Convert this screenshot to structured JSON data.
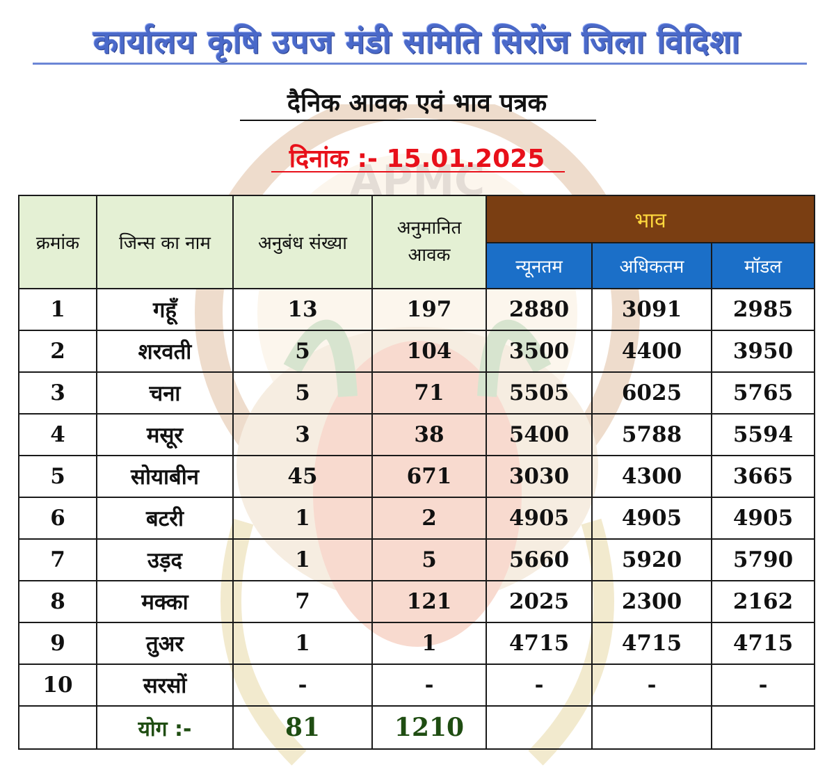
{
  "header": {
    "office_title": "कार्यालय कृषि उपज मंडी समिति सिरोंज जिला विदिशा",
    "subtitle": "दैनिक आवक एवं भाव पत्रक",
    "date_label": "दिनांक :- 15.01.2025"
  },
  "table": {
    "columns": {
      "serial": "क्रमांक",
      "commodity": "जिन्स का नाम",
      "contracts": "अनुबंध संख्या",
      "arrival": "अनुमानित आवक",
      "price_group": "भाव",
      "min": "न्यूनतम",
      "max": "अधिकतम",
      "modal": "मॉडल"
    },
    "rows": [
      {
        "sn": "1",
        "name": "गहूँ",
        "contracts": "13",
        "arrival": "197",
        "min": "2880",
        "max": "3091",
        "modal": "2985"
      },
      {
        "sn": "2",
        "name": "शरवती",
        "contracts": "5",
        "arrival": "104",
        "min": "3500",
        "max": "4400",
        "modal": "3950"
      },
      {
        "sn": "3",
        "name": "चना",
        "contracts": "5",
        "arrival": "71",
        "min": "5505",
        "max": "6025",
        "modal": "5765"
      },
      {
        "sn": "4",
        "name": "मसूर",
        "contracts": "3",
        "arrival": "38",
        "min": "5400",
        "max": "5788",
        "modal": "5594"
      },
      {
        "sn": "5",
        "name": "सोयाबीन",
        "contracts": "45",
        "arrival": "671",
        "min": "3030",
        "max": "4300",
        "modal": "3665"
      },
      {
        "sn": "6",
        "name": "बटरी",
        "contracts": "1",
        "arrival": "2",
        "min": "4905",
        "max": "4905",
        "modal": "4905"
      },
      {
        "sn": "7",
        "name": "उड़द",
        "contracts": "1",
        "arrival": "5",
        "min": "5660",
        "max": "5920",
        "modal": "5790"
      },
      {
        "sn": "8",
        "name": "मक्का",
        "contracts": "7",
        "arrival": "121",
        "min": "2025",
        "max": "2300",
        "modal": "2162"
      },
      {
        "sn": "9",
        "name": "तुअर",
        "contracts": "1",
        "arrival": "1",
        "min": "4715",
        "max": "4715",
        "modal": "4715"
      },
      {
        "sn": "10",
        "name": "सरसों",
        "contracts": "-",
        "arrival": "-",
        "min": "-",
        "max": "-",
        "modal": "-"
      }
    ],
    "total": {
      "label": "योग :-",
      "contracts": "81",
      "arrival": "1210"
    }
  },
  "watermark": {
    "seal_text": "APMC",
    "colors": {
      "seal": "#b5651d",
      "wheat": "#c9a227",
      "leaf": "#4f8a2a"
    }
  },
  "colors": {
    "title_blue": "#4a69c9",
    "date_red": "#e8101a",
    "header_green": "#e4f0d4",
    "bhav_brown": "#7a3e12",
    "bhav_text": "#ffd83d",
    "sub_header_blue": "#1b6fc8",
    "total_green": "#1f4d12"
  }
}
